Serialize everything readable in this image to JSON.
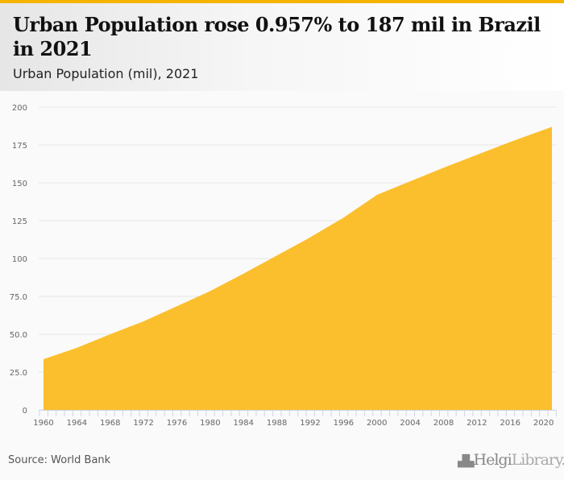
{
  "header": {
    "title": "Urban Population rose 0.957% to 187 mil in Brazil in 2021",
    "subtitle": "Urban Population (mil), 2021"
  },
  "footer": {
    "source": "Source: World Bank",
    "logo_helgi": "Helgi",
    "logo_library": "Library."
  },
  "colors": {
    "accent": "#f5b400",
    "fill": "#fbbf2e"
  },
  "chart_data": {
    "type": "area",
    "title": "Urban Population (mil), 2021",
    "xlabel": "",
    "ylabel": "",
    "x": [
      1960,
      1964,
      1968,
      1972,
      1976,
      1980,
      1984,
      1988,
      1992,
      1996,
      2000,
      2004,
      2008,
      2012,
      2016,
      2020,
      2021
    ],
    "values": [
      33.5,
      41,
      50,
      58.5,
      68.5,
      78.5,
      90,
      102,
      114,
      127,
      142,
      151,
      160,
      168.5,
      177,
      185,
      187
    ],
    "xlim": [
      1960,
      2021
    ],
    "ylim": [
      0,
      200
    ],
    "yticks": [
      "0",
      "25.0",
      "50.0",
      "75.0",
      "100",
      "125",
      "150",
      "175",
      "200"
    ],
    "ytick_values": [
      0,
      25,
      50,
      75,
      100,
      125,
      150,
      175,
      200
    ],
    "xticks": [
      "1960",
      "1964",
      "1968",
      "1972",
      "1976",
      "1980",
      "1984",
      "1988",
      "1992",
      "1996",
      "2000",
      "2004",
      "2008",
      "2012",
      "2016",
      "2020"
    ],
    "grid": true,
    "legend": "none"
  }
}
